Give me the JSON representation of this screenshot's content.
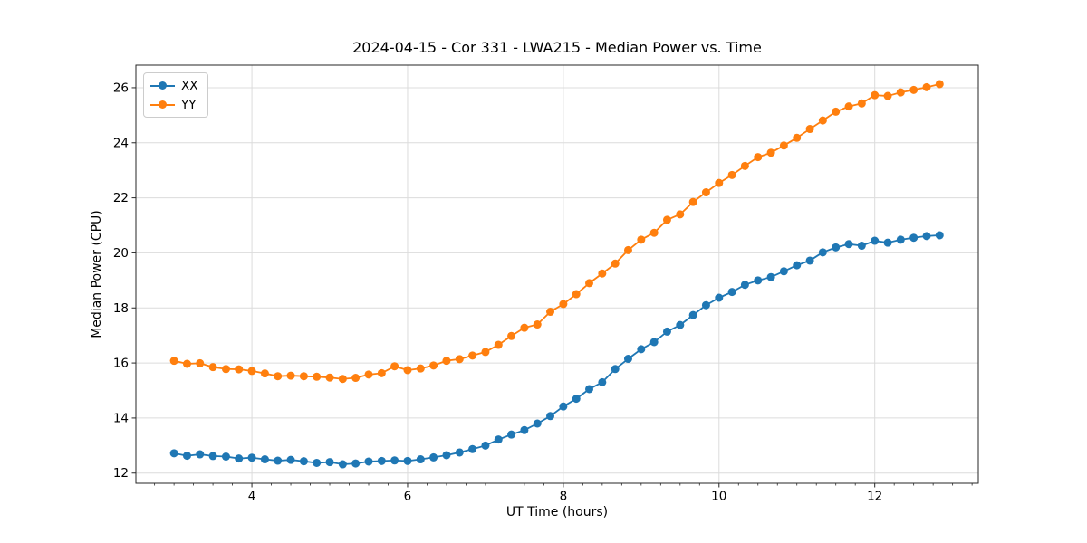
{
  "chart_data": {
    "type": "line",
    "title": "2024-04-15 - Cor 331 - LWA215 - Median Power vs. Time",
    "xlabel": "UT Time (hours)",
    "ylabel": "Median Power (CPU)",
    "xlim": [
      2.51,
      13.33
    ],
    "ylim": [
      11.63,
      26.82
    ],
    "x_ticks": [
      4,
      6,
      8,
      10,
      12
    ],
    "y_ticks": [
      12,
      14,
      16,
      18,
      20,
      22,
      24,
      26
    ],
    "x_minor_tick_step": 0.25,
    "grid": true,
    "legend_position": "upper left",
    "marker": "circle",
    "x": [
      3.0,
      3.167,
      3.333,
      3.5,
      3.667,
      3.833,
      4.0,
      4.167,
      4.333,
      4.5,
      4.667,
      4.833,
      5.0,
      5.167,
      5.333,
      5.5,
      5.667,
      5.833,
      6.0,
      6.167,
      6.333,
      6.5,
      6.667,
      6.833,
      7.0,
      7.167,
      7.333,
      7.5,
      7.667,
      7.833,
      8.0,
      8.167,
      8.333,
      8.5,
      8.667,
      8.833,
      9.0,
      9.167,
      9.333,
      9.5,
      9.667,
      9.833,
      10.0,
      10.167,
      10.333,
      10.5,
      10.667,
      10.833,
      11.0,
      11.167,
      11.333,
      11.5,
      11.667,
      11.833,
      12.0,
      12.167,
      12.333,
      12.5,
      12.667,
      12.833
    ],
    "series": [
      {
        "name": "XX",
        "color": "#1f77b4",
        "values": [
          12.72,
          12.63,
          12.68,
          12.62,
          12.6,
          12.53,
          12.56,
          12.5,
          12.45,
          12.48,
          12.43,
          12.37,
          12.4,
          12.32,
          12.35,
          12.42,
          12.44,
          12.46,
          12.44,
          12.5,
          12.57,
          12.65,
          12.75,
          12.87,
          13.0,
          13.22,
          13.4,
          13.56,
          13.8,
          14.07,
          14.42,
          14.7,
          15.05,
          15.3,
          15.78,
          16.15,
          16.5,
          16.76,
          17.14,
          17.38,
          17.74,
          18.1,
          18.37,
          18.58,
          18.84,
          19.0,
          19.12,
          19.33,
          19.55,
          19.72,
          20.02,
          20.2,
          20.32,
          20.26,
          20.44,
          20.37,
          20.48,
          20.55,
          20.61,
          20.64
        ]
      },
      {
        "name": "YY",
        "color": "#ff7f0e",
        "values": [
          16.08,
          15.97,
          15.99,
          15.85,
          15.78,
          15.77,
          15.71,
          15.62,
          15.52,
          15.54,
          15.52,
          15.5,
          15.47,
          15.42,
          15.46,
          15.58,
          15.63,
          15.88,
          15.74,
          15.8,
          15.91,
          16.08,
          16.14,
          16.27,
          16.4,
          16.66,
          16.98,
          17.28,
          17.4,
          17.86,
          18.14,
          18.5,
          18.9,
          19.25,
          19.61,
          20.1,
          20.48,
          20.73,
          21.2,
          21.4,
          21.85,
          22.2,
          22.54,
          22.83,
          23.16,
          23.48,
          23.64,
          23.9,
          24.18,
          24.5,
          24.81,
          25.13,
          25.32,
          25.43,
          25.73,
          25.7,
          25.83,
          25.92,
          26.02,
          26.13
        ]
      }
    ]
  },
  "style": {
    "grid_color": "#dcdcdc",
    "spine_color": "#262626",
    "tick_color": "#262626",
    "text_color": "#000000"
  }
}
